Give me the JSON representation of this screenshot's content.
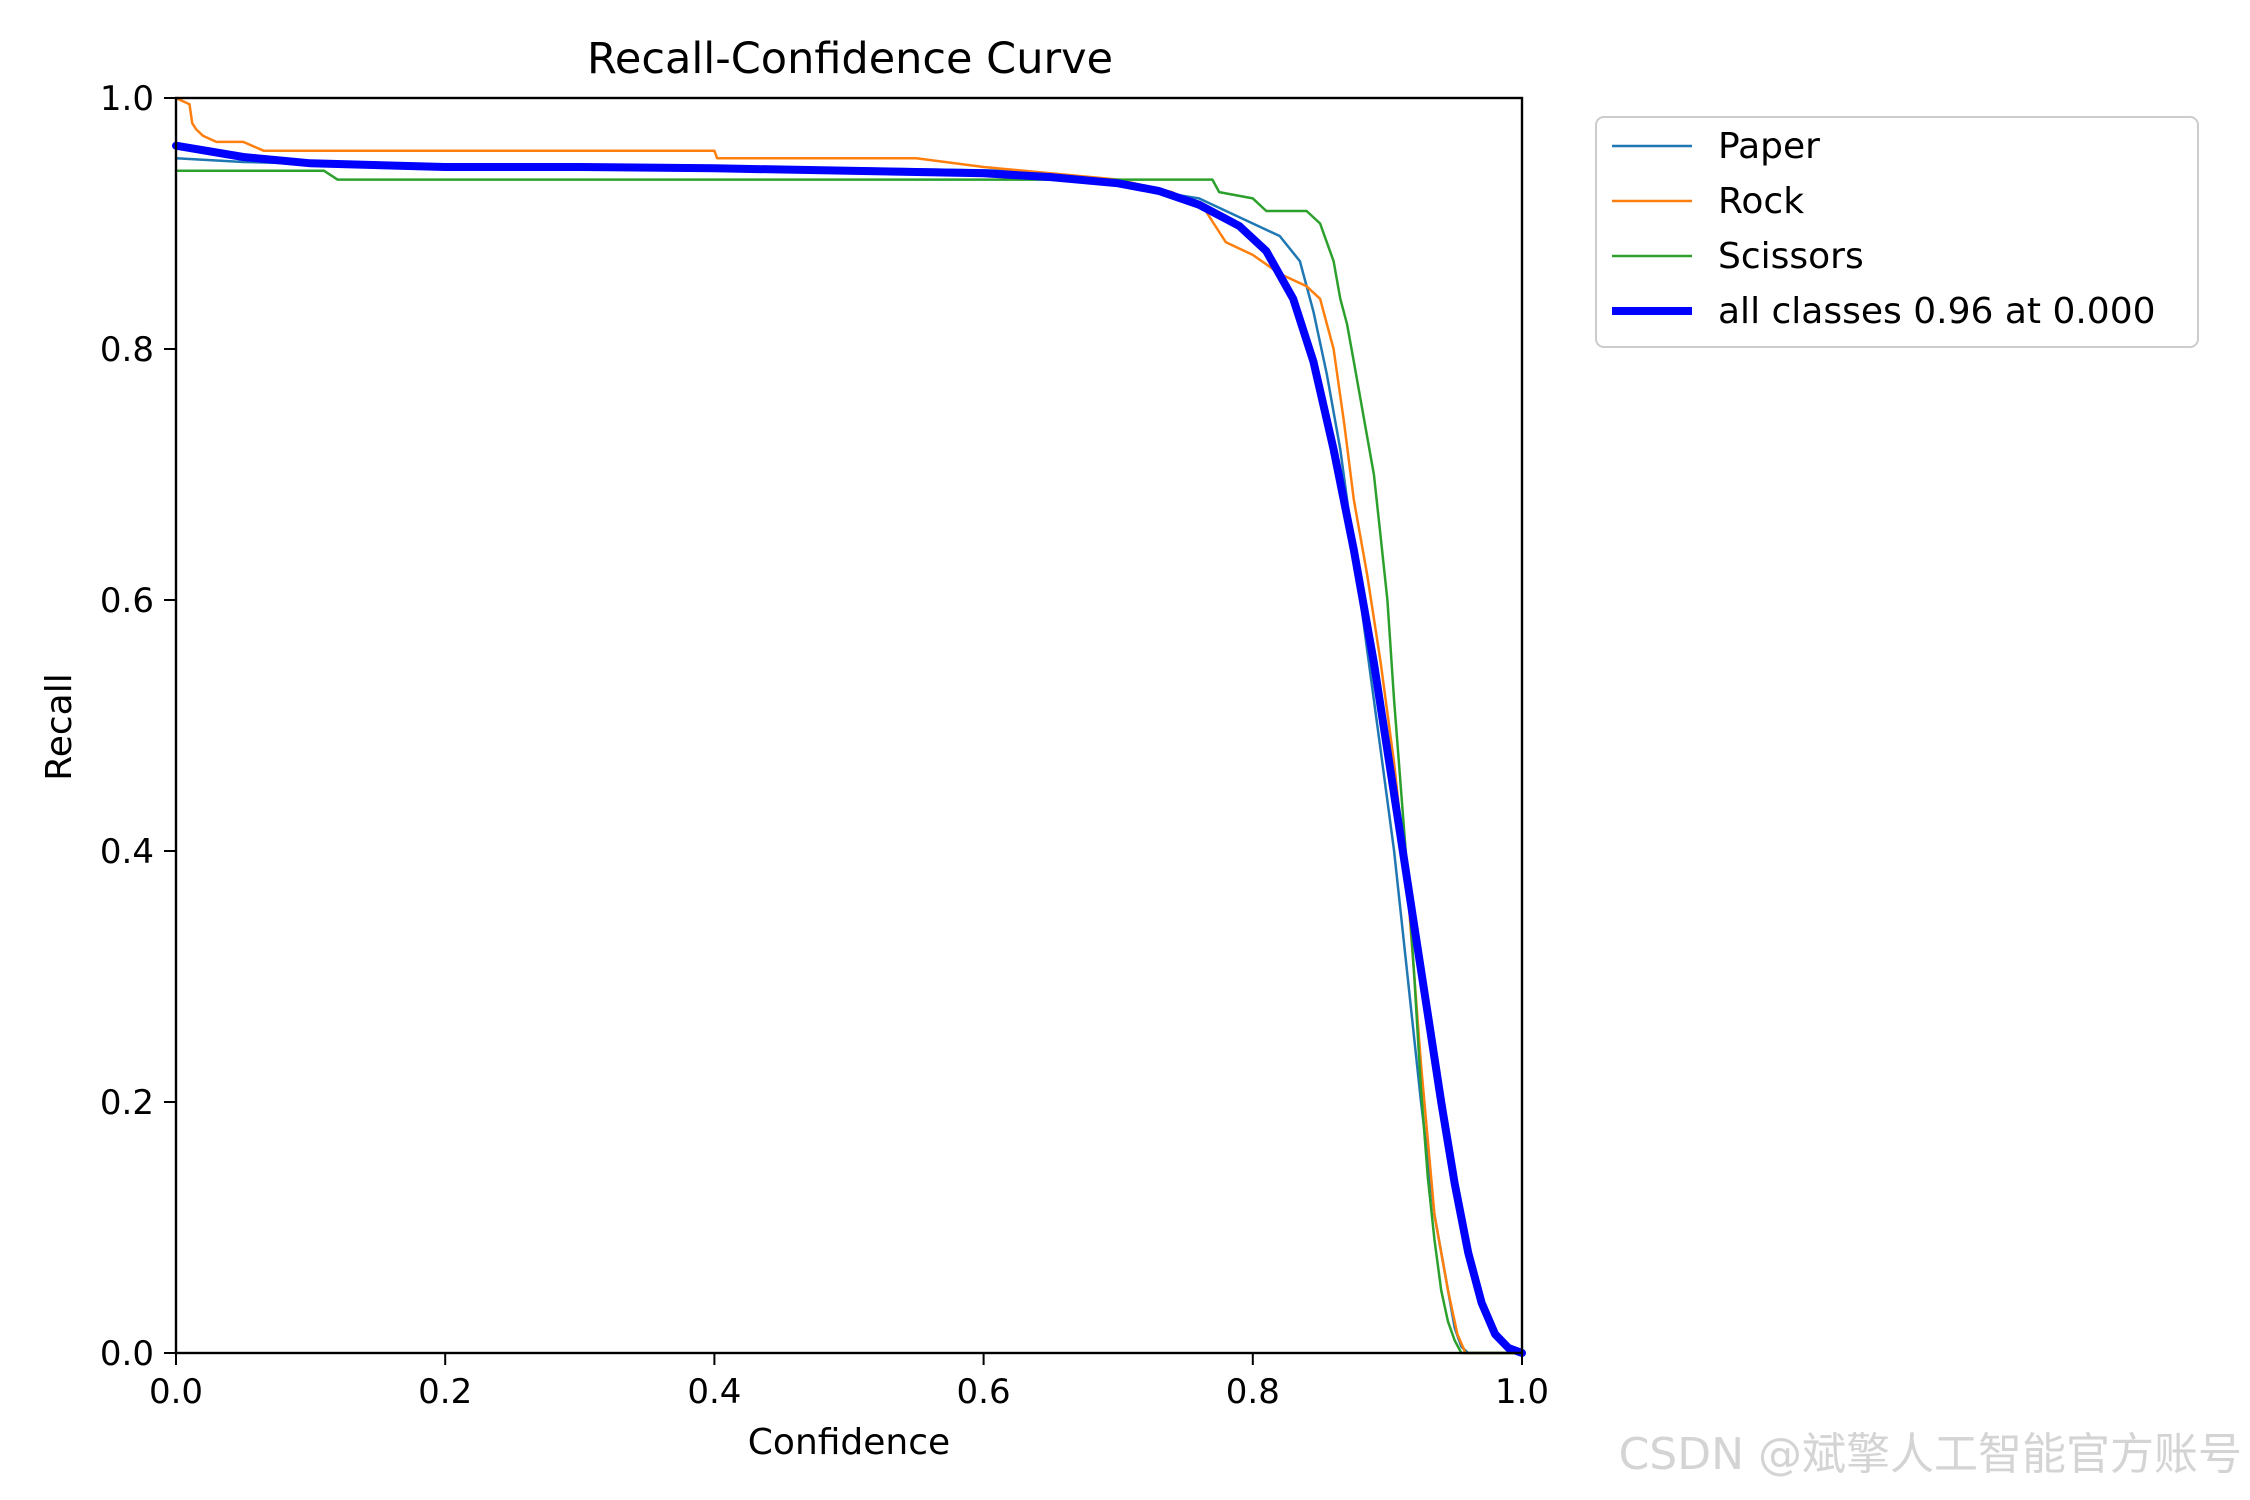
{
  "watermark": "CSDN @斌擎人工智能官方账号",
  "chart_data": {
    "type": "line",
    "title": "Recall-Confidence Curve",
    "xlabel": "Confidence",
    "ylabel": "Recall",
    "xlim": [
      0,
      1
    ],
    "ylim": [
      0,
      1
    ],
    "xticks": [
      "0.0",
      "0.2",
      "0.4",
      "0.6",
      "0.8",
      "1.0"
    ],
    "yticks": [
      "0.0",
      "0.2",
      "0.4",
      "0.6",
      "0.8",
      "1.0"
    ],
    "grid": false,
    "legend_position": "outside top-right",
    "series": [
      {
        "name": "Paper",
        "color": "#1f77b4",
        "width": "thin",
        "x": [
          0.0,
          0.05,
          0.12,
          0.3,
          0.5,
          0.62,
          0.7,
          0.76,
          0.8,
          0.82,
          0.835,
          0.845,
          0.855,
          0.865,
          0.875,
          0.885,
          0.895,
          0.905,
          0.915,
          0.925,
          0.935,
          0.945,
          0.95,
          0.955,
          0.96,
          1.0
        ],
        "y": [
          0.952,
          0.949,
          0.947,
          0.945,
          0.944,
          0.942,
          0.93,
          0.92,
          0.9,
          0.89,
          0.87,
          0.83,
          0.78,
          0.72,
          0.64,
          0.56,
          0.48,
          0.4,
          0.3,
          0.2,
          0.11,
          0.05,
          0.02,
          0.005,
          0.0,
          0.0
        ]
      },
      {
        "name": "Rock",
        "color": "#ff7f0e",
        "width": "thin",
        "x": [
          0.0,
          0.01,
          0.012,
          0.015,
          0.02,
          0.03,
          0.05,
          0.065,
          0.2,
          0.4,
          0.402,
          0.55,
          0.6,
          0.7,
          0.74,
          0.765,
          0.78,
          0.8,
          0.82,
          0.84,
          0.85,
          0.86,
          0.868,
          0.875,
          0.885,
          0.895,
          0.905,
          0.915,
          0.925,
          0.935,
          0.945,
          0.952,
          0.958,
          1.0
        ],
        "y": [
          1.0,
          0.995,
          0.98,
          0.975,
          0.97,
          0.965,
          0.965,
          0.958,
          0.958,
          0.958,
          0.952,
          0.952,
          0.945,
          0.935,
          0.925,
          0.91,
          0.885,
          0.875,
          0.86,
          0.85,
          0.84,
          0.8,
          0.74,
          0.68,
          0.62,
          0.55,
          0.47,
          0.37,
          0.23,
          0.11,
          0.05,
          0.015,
          0.0,
          0.0
        ]
      },
      {
        "name": "Scissors",
        "color": "#2ca02c",
        "width": "thin",
        "x": [
          0.0,
          0.11,
          0.12,
          0.3,
          0.5,
          0.7,
          0.77,
          0.775,
          0.8,
          0.81,
          0.84,
          0.85,
          0.86,
          0.865,
          0.87,
          0.875,
          0.88,
          0.885,
          0.89,
          0.895,
          0.9,
          0.905,
          0.91,
          0.915,
          0.92,
          0.925,
          0.93,
          0.935,
          0.94,
          0.945,
          0.95,
          0.955,
          0.96,
          1.0
        ],
        "y": [
          0.942,
          0.942,
          0.935,
          0.935,
          0.935,
          0.935,
          0.935,
          0.925,
          0.92,
          0.91,
          0.91,
          0.9,
          0.87,
          0.84,
          0.82,
          0.79,
          0.76,
          0.73,
          0.7,
          0.65,
          0.6,
          0.52,
          0.45,
          0.38,
          0.3,
          0.21,
          0.14,
          0.09,
          0.05,
          0.025,
          0.01,
          0.0,
          0.0,
          0.0
        ]
      },
      {
        "name": "all classes 0.96 at 0.000",
        "color": "#0000ff",
        "width": "thick",
        "x": [
          0.0,
          0.05,
          0.1,
          0.2,
          0.3,
          0.4,
          0.5,
          0.6,
          0.65,
          0.7,
          0.73,
          0.76,
          0.79,
          0.81,
          0.83,
          0.845,
          0.86,
          0.875,
          0.89,
          0.9,
          0.91,
          0.92,
          0.93,
          0.94,
          0.95,
          0.96,
          0.97,
          0.98,
          0.99,
          1.0
        ],
        "y": [
          0.962,
          0.953,
          0.948,
          0.945,
          0.945,
          0.944,
          0.942,
          0.94,
          0.937,
          0.932,
          0.926,
          0.915,
          0.898,
          0.878,
          0.84,
          0.79,
          0.72,
          0.64,
          0.55,
          0.48,
          0.41,
          0.34,
          0.27,
          0.2,
          0.135,
          0.08,
          0.04,
          0.015,
          0.004,
          0.0
        ]
      }
    ]
  }
}
